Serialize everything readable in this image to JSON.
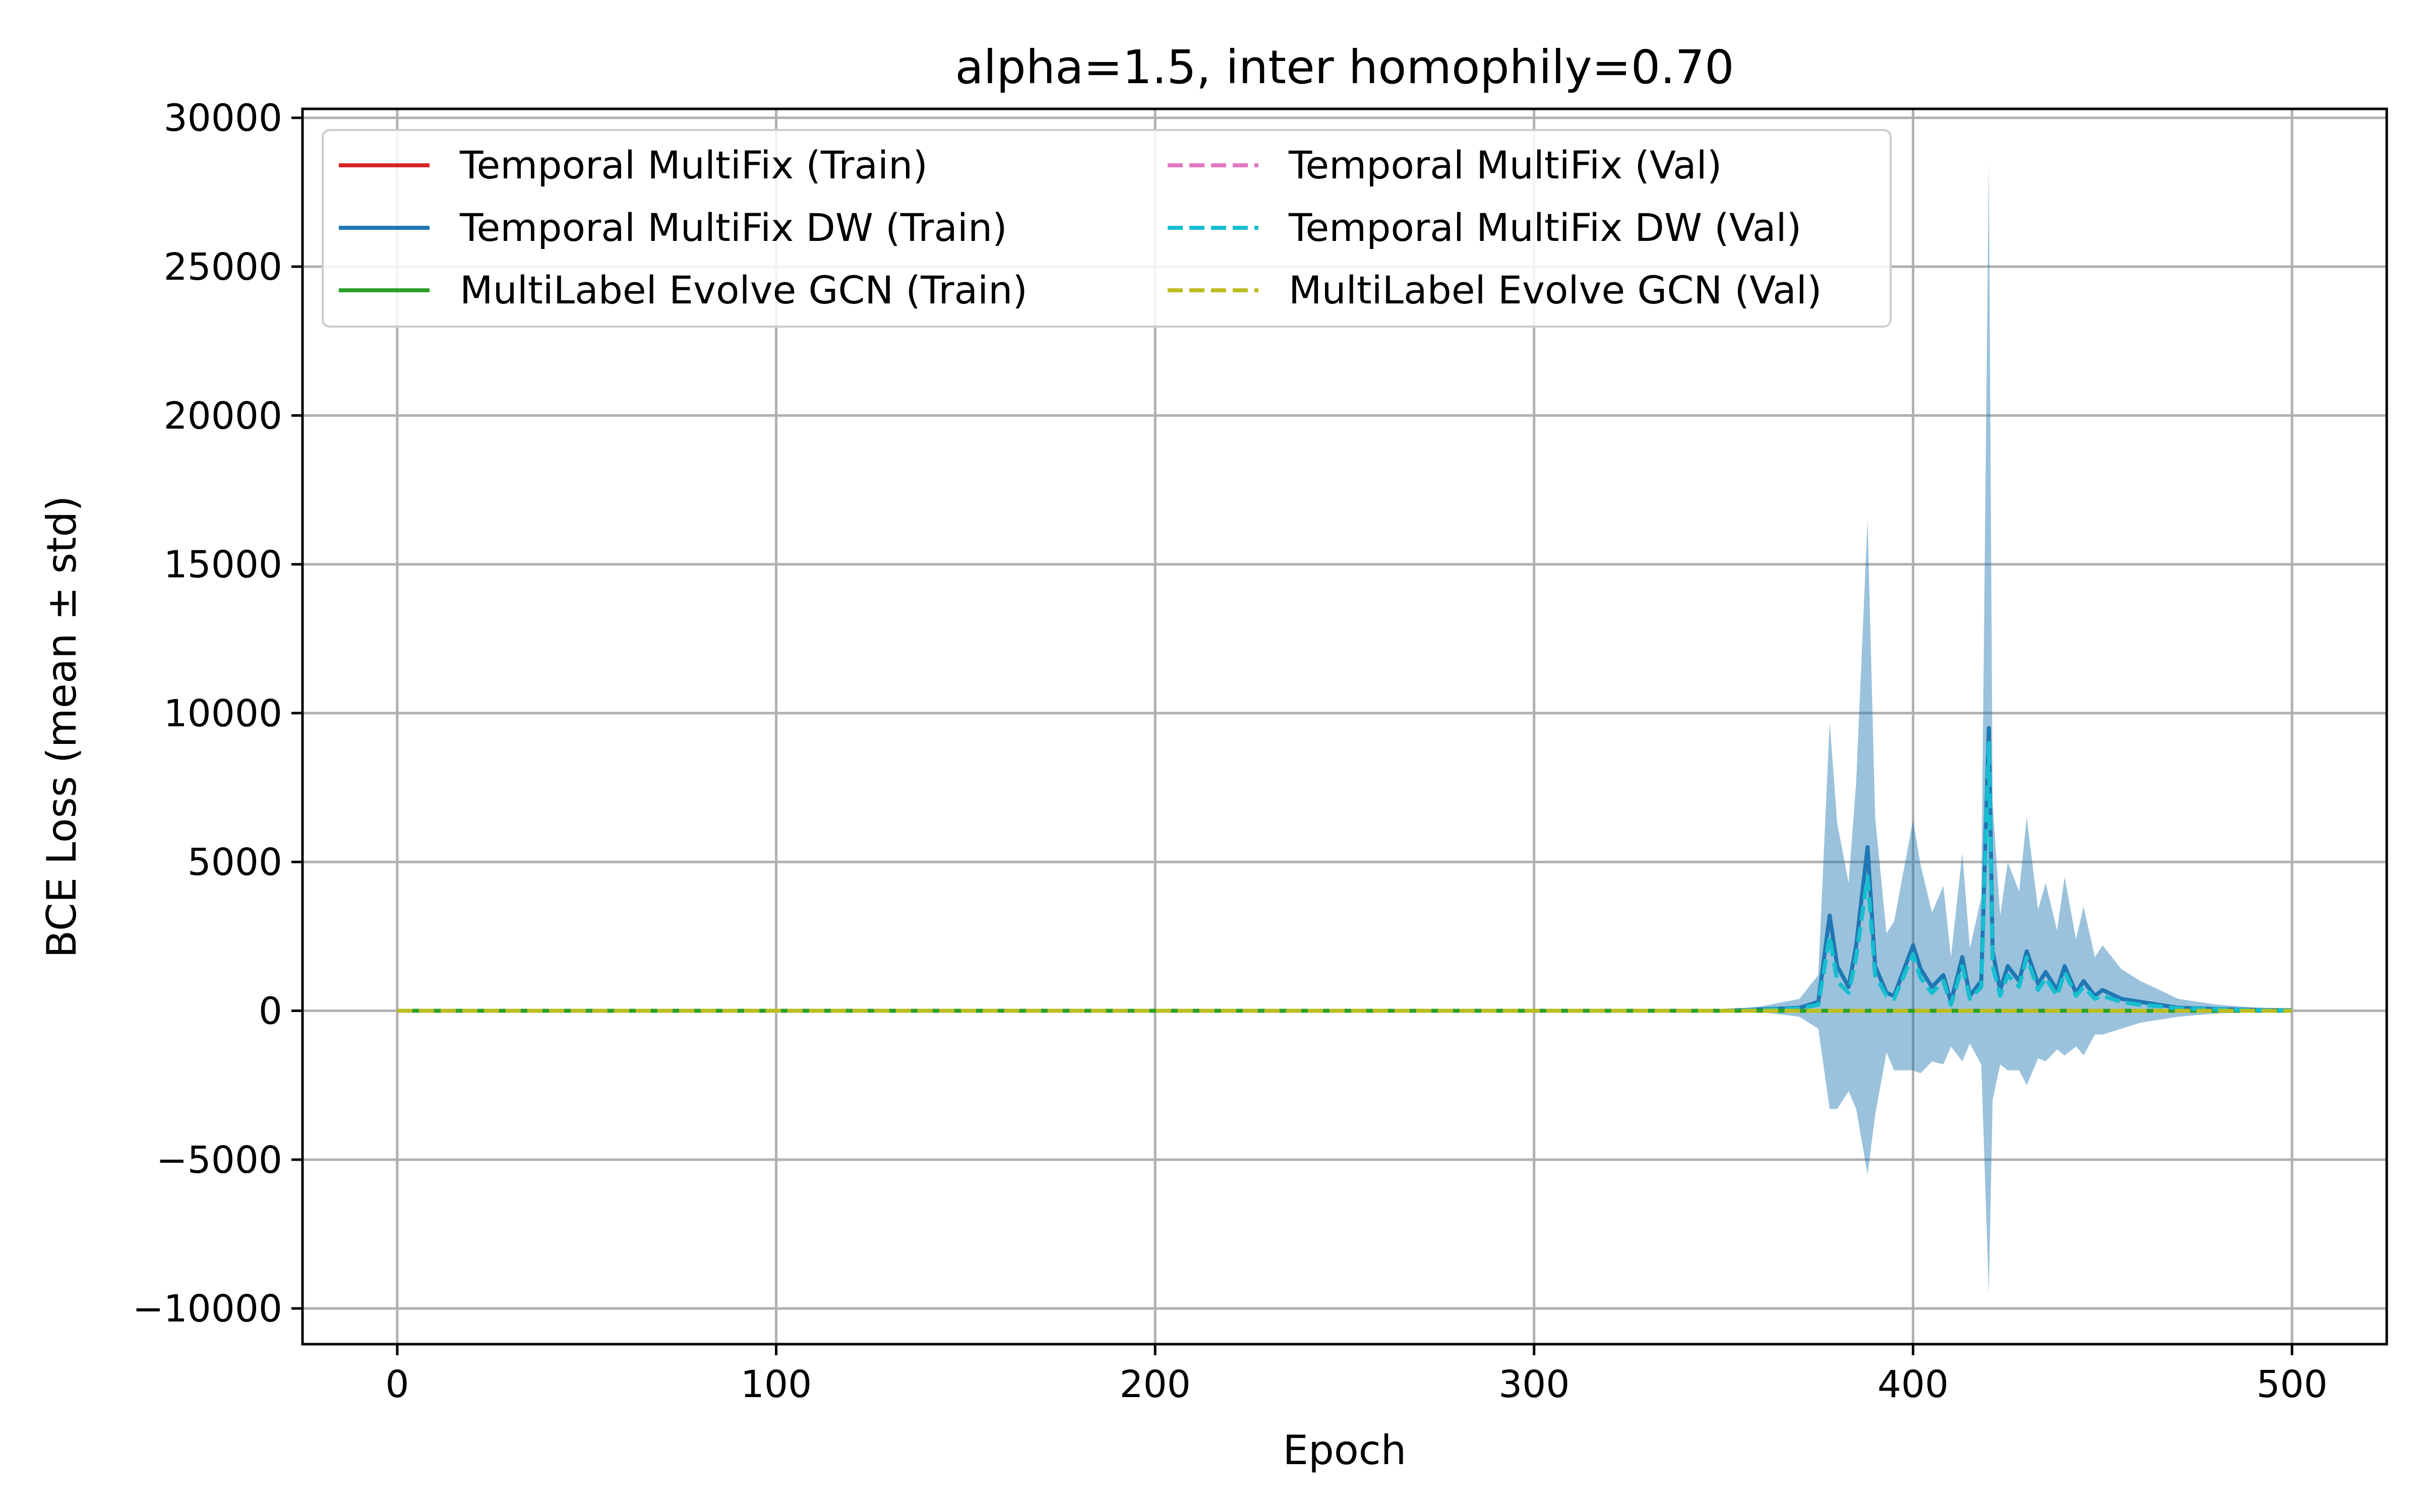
{
  "chart_data": {
    "type": "line",
    "title": "alpha=1.5, inter homophily=0.70",
    "xlabel": "Epoch",
    "ylabel": "BCE Loss (mean ± std)",
    "xlim": [
      -25,
      525
    ],
    "ylim": [
      -11200,
      30300
    ],
    "xticks": [
      0,
      100,
      200,
      300,
      400,
      500
    ],
    "yticks": [
      -10000,
      -5000,
      0,
      5000,
      10000,
      15000,
      20000,
      25000,
      30000
    ],
    "xtick_labels": [
      "0",
      "100",
      "200",
      "300",
      "400",
      "500"
    ],
    "ytick_labels": [
      "−10000",
      "−5000",
      "0",
      "5000",
      "10000",
      "15000",
      "20000",
      "25000",
      "30000"
    ],
    "grid": true,
    "legend_position": "upper-left",
    "legend_columns": 2,
    "series": [
      {
        "name": "Temporal MultiFix (Train)",
        "style": "solid",
        "color": "#d62728",
        "x": [
          0,
          500
        ],
        "y": [
          0,
          0
        ]
      },
      {
        "name": "Temporal MultiFix DW (Train)",
        "style": "solid",
        "color": "#1f77b4",
        "x": [
          0,
          350,
          360,
          370,
          375,
          378,
          380,
          383,
          385,
          388,
          390,
          393,
          395,
          400,
          402,
          405,
          408,
          410,
          413,
          415,
          418,
          420,
          421,
          423,
          425,
          428,
          430,
          433,
          435,
          438,
          440,
          443,
          445,
          448,
          450,
          455,
          460,
          465,
          470,
          480,
          490,
          500
        ],
        "y": [
          0,
          0,
          50,
          100,
          300,
          3200,
          1500,
          800,
          2200,
          5500,
          1500,
          600,
          500,
          2200,
          1400,
          800,
          1200,
          300,
          1800,
          500,
          1000,
          9500,
          2000,
          700,
          1500,
          1000,
          2000,
          900,
          1300,
          700,
          1500,
          600,
          1000,
          500,
          700,
          400,
          300,
          200,
          100,
          60,
          30,
          20
        ],
        "std": [
          0,
          0,
          100,
          300,
          900,
          6500,
          4800,
          3500,
          5500,
          11000,
          5000,
          2000,
          2500,
          4200,
          3500,
          2500,
          3000,
          1500,
          3500,
          1600,
          2800,
          19000,
          5000,
          2500,
          3500,
          3000,
          4500,
          2500,
          3000,
          2000,
          3000,
          1800,
          2500,
          1300,
          1500,
          1000,
          700,
          500,
          300,
          150,
          80,
          50
        ]
      },
      {
        "name": "MultiLabel Evolve GCN (Train)",
        "style": "solid",
        "color": "#2ca02c",
        "x": [
          0,
          500
        ],
        "y": [
          0,
          0
        ]
      },
      {
        "name": "Temporal MultiFix (Val)",
        "style": "dashed",
        "color": "#e377c2",
        "x": [
          0,
          500
        ],
        "y": [
          0,
          0
        ]
      },
      {
        "name": "Temporal MultiFix DW (Val)",
        "style": "dashed",
        "color": "#17becf",
        "x": [
          0,
          350,
          360,
          370,
          375,
          378,
          380,
          383,
          385,
          388,
          390,
          393,
          395,
          400,
          402,
          405,
          408,
          410,
          413,
          415,
          418,
          420,
          421,
          423,
          425,
          428,
          430,
          433,
          435,
          438,
          440,
          443,
          445,
          448,
          450,
          455,
          460,
          465,
          470,
          480,
          490,
          500
        ],
        "y": [
          0,
          0,
          30,
          80,
          200,
          2500,
          1000,
          600,
          1800,
          4500,
          1200,
          500,
          400,
          1900,
          1100,
          600,
          1000,
          200,
          1500,
          400,
          800,
          9000,
          1500,
          500,
          1200,
          800,
          1800,
          700,
          1100,
          500,
          1300,
          500,
          800,
          400,
          500,
          300,
          200,
          150,
          80,
          50,
          20,
          10
        ]
      },
      {
        "name": "MultiLabel Evolve GCN (Val)",
        "style": "dashed",
        "color": "#bcbd22",
        "x": [
          0,
          500
        ],
        "y": [
          0,
          0
        ]
      }
    ]
  }
}
